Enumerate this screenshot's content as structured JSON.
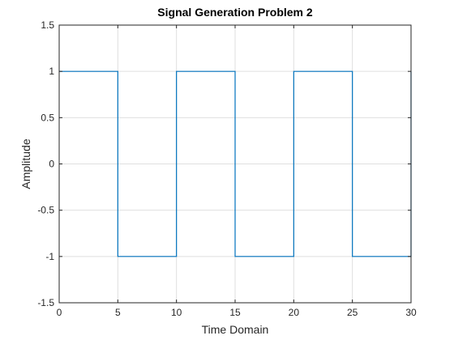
{
  "chart_data": {
    "type": "line",
    "title": "Signal Generation Problem 2",
    "xlabel": "Time Domain",
    "ylabel": "Amplitude",
    "xlim": [
      0,
      30
    ],
    "ylim": [
      -1.5,
      1.5
    ],
    "xticks": [
      0,
      5,
      10,
      15,
      20,
      25,
      30
    ],
    "yticks": [
      -1.5,
      -1,
      -0.5,
      0,
      0.5,
      1,
      1.5
    ],
    "xtick_labels": [
      "0",
      "5",
      "10",
      "15",
      "20",
      "25",
      "30"
    ],
    "ytick_labels": [
      "-1.5",
      "-1",
      "-0.5",
      "0",
      "0.5",
      "1",
      "1.5"
    ],
    "grid": true,
    "series": [
      {
        "color": "#0072BD",
        "x": [
          0,
          5,
          5,
          10,
          10,
          15,
          15,
          20,
          20,
          25,
          25,
          30,
          30
        ],
        "y": [
          1,
          1,
          -1,
          -1,
          1,
          1,
          -1,
          -1,
          1,
          1,
          -1,
          -1,
          1
        ]
      }
    ]
  }
}
